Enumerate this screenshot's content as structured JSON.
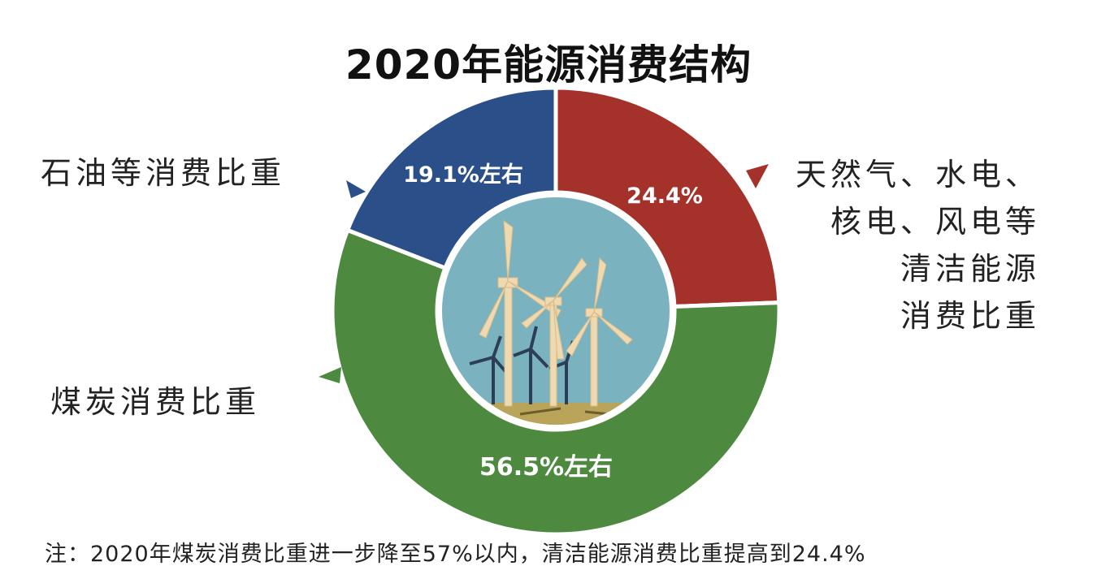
{
  "chart_data": {
    "type": "pie",
    "title": "2020年能源消费结构",
    "slices": [
      {
        "label": "天然气、水电、核电、风电等清洁能源消费比重",
        "value": 24.4,
        "value_label": "24.4%",
        "color": "#a5312b"
      },
      {
        "label": "煤炭消费比重",
        "value": 56.5,
        "value_label": "56.5%左右",
        "color": "#4d8a3f"
      },
      {
        "label": "石油等消费比重",
        "value": 19.1,
        "value_label": "19.1%左右",
        "color": "#2b5089"
      }
    ],
    "legend_lines": {
      "clean": [
        "天然气、水电、",
        "核电、风电等",
        "清洁能源",
        "消费比重"
      ],
      "coal": [
        "煤炭消费比重"
      ],
      "oil": [
        "石油等消费比重"
      ]
    },
    "note": "注：2020年煤炭消费比重进一步降至57%以内，清洁能源消费比重提高到24.4%"
  }
}
